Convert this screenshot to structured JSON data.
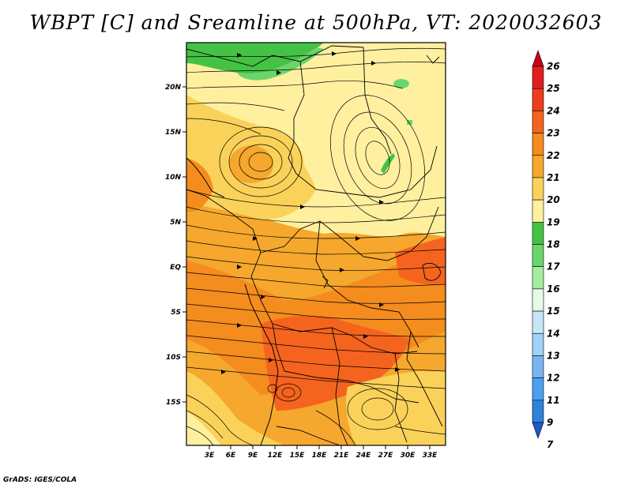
{
  "title": "WBPT [C] and Sreamline at 500hPa, VT: 2020032603",
  "footer": "GrADS: IGES/COLA",
  "map": {
    "lat_labels": [
      "20N",
      "15N",
      "10N",
      "5N",
      "EQ",
      "5S",
      "10S",
      "15S"
    ],
    "lon_labels": [
      "3E",
      "6E",
      "9E",
      "12E",
      "15E",
      "18E",
      "21E",
      "24E",
      "27E",
      "30E",
      "33E"
    ]
  },
  "colorbar": {
    "levels": [
      "26",
      "25",
      "24",
      "23",
      "22",
      "21",
      "20",
      "19",
      "18",
      "17",
      "16",
      "15",
      "14",
      "13",
      "12",
      "11",
      "9",
      "7"
    ],
    "colors": [
      "#c8001e",
      "#e11e1e",
      "#f03c1e",
      "#f5641e",
      "#f58c1e",
      "#f5a82d",
      "#fad25a",
      "#fff0a0",
      "#44c244",
      "#6ad66a",
      "#a6eca0",
      "#e6fae6",
      "#c8e6fa",
      "#a0d2fa",
      "#78b4f0",
      "#4ba0f0",
      "#2d82dc",
      "#1e5ac8"
    ]
  },
  "colors": {
    "sahel": "#fff0a0",
    "warm": "#fad25a",
    "hot": "#f5a82d",
    "hotter": "#f58c1e",
    "hottest": "#f5641e",
    "cool": "#44c244",
    "cool2": "#6ad66a"
  }
}
